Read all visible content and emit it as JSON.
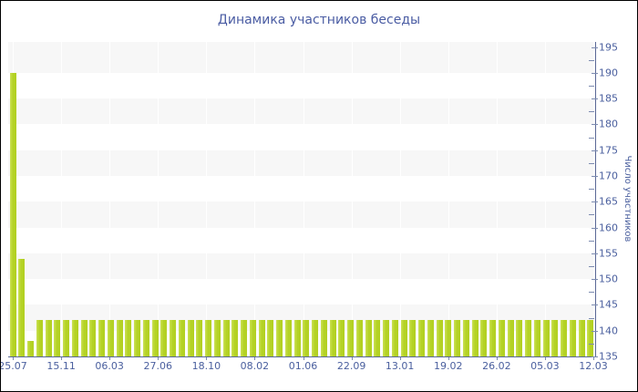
{
  "window": {
    "background": "#ffffff",
    "frame_color": "#000000"
  },
  "chart_data": {
    "type": "bar",
    "title": "Динамика участников беседы",
    "ylabel": "Число участников",
    "xlabel": "",
    "x_tick_labels": [
      "25.07",
      "15.11",
      "06.03",
      "27.06",
      "18.10",
      "08.02",
      "01.06",
      "22.09",
      "13.01",
      "19.02",
      "26.02",
      "05.03",
      "12.03"
    ],
    "values": [
      190,
      154,
      138,
      142,
      142,
      142,
      142,
      142,
      142,
      142,
      142,
      142,
      142,
      142,
      142,
      142,
      142,
      142,
      142,
      142,
      142,
      142,
      142,
      142,
      142,
      142,
      142,
      142,
      142,
      142,
      142,
      142,
      142,
      142,
      142,
      142,
      142,
      142,
      142,
      142,
      142,
      142,
      142,
      142,
      142,
      142,
      142,
      142,
      142,
      142,
      142,
      142,
      142,
      142,
      142,
      142,
      142,
      142,
      142,
      142,
      142,
      142,
      142,
      142,
      142,
      142
    ],
    "ylim": [
      135,
      196
    ],
    "y_tick_step": 5,
    "y_minor_tick_step": 2.5,
    "y_tick_labels": [
      "135",
      "140",
      "145",
      "150",
      "155",
      "160",
      "165",
      "170",
      "175",
      "180",
      "185",
      "190",
      "195"
    ],
    "legend": "none",
    "grid": "alternating-horizontal-bands",
    "gridband_values": [
      [
        140,
        145
      ],
      [
        150,
        155
      ],
      [
        160,
        165
      ],
      [
        170,
        175
      ],
      [
        180,
        185
      ],
      [
        190,
        196
      ]
    ],
    "colors": {
      "bar": "#b5d326",
      "bar_highlight": "#cbe156",
      "band": "#f7f7f7",
      "axis_line": "#5a6896",
      "tick": "#7c8bb0",
      "label_text": "#4a5f9e",
      "title_text": "#4a5ca3"
    }
  }
}
